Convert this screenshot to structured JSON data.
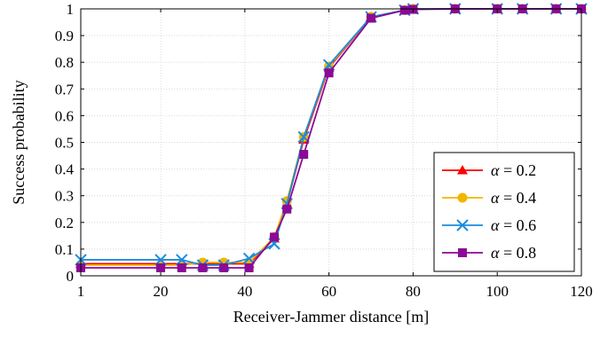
{
  "chart_data": {
    "type": "line",
    "xlabel": "Receiver-Jammer distance [m]",
    "ylabel": "Success probability",
    "xlim": [
      1,
      120
    ],
    "ylim": [
      0,
      1
    ],
    "xticks": [
      1,
      20,
      40,
      60,
      80,
      100,
      120
    ],
    "yticks": [
      0,
      0.1,
      0.2,
      0.3,
      0.4,
      0.5,
      0.6,
      0.7,
      0.8,
      0.9,
      1
    ],
    "grid": true,
    "legend_position": "bottom-right",
    "series": [
      {
        "name": "α = 0.2",
        "legend_value": "0.2",
        "color": "#ff0000",
        "marker": "triangle",
        "x": [
          1,
          20,
          25,
          30,
          35,
          41,
          47,
          50,
          54,
          60,
          70,
          78,
          80,
          90,
          100,
          106,
          114,
          120
        ],
        "y": [
          0.045,
          0.045,
          0.045,
          0.045,
          0.045,
          0.045,
          0.14,
          0.27,
          0.51,
          0.78,
          0.97,
          0.995,
          1.0,
          1.0,
          1.0,
          1.0,
          1.0,
          1.0
        ]
      },
      {
        "name": "α = 0.4",
        "legend_value": "0.4",
        "color": "#f2b600",
        "marker": "circle",
        "x": [
          1,
          20,
          25,
          30,
          35,
          41,
          47,
          50,
          54,
          60,
          70,
          78,
          80,
          90,
          100,
          106,
          114,
          120
        ],
        "y": [
          0.04,
          0.04,
          0.04,
          0.05,
          0.05,
          0.05,
          0.145,
          0.28,
          0.52,
          0.785,
          0.97,
          0.995,
          1.0,
          1.0,
          1.0,
          1.0,
          1.0,
          1.0
        ]
      },
      {
        "name": "α = 0.6",
        "legend_value": "0.6",
        "color": "#1a8cdc",
        "marker": "cross",
        "x": [
          1,
          20,
          25,
          30,
          35,
          41,
          47,
          50,
          54,
          60,
          70,
          78,
          80,
          90,
          100,
          106,
          114,
          120
        ],
        "y": [
          0.06,
          0.06,
          0.06,
          0.04,
          0.04,
          0.065,
          0.12,
          0.27,
          0.52,
          0.79,
          0.97,
          0.995,
          1.0,
          1.0,
          1.0,
          1.0,
          1.0,
          1.0
        ]
      },
      {
        "name": "α = 0.8",
        "legend_value": "0.8",
        "color": "#8b0a96",
        "marker": "square",
        "x": [
          1,
          20,
          25,
          30,
          35,
          41,
          47,
          50,
          54,
          60,
          70,
          78,
          80,
          90,
          100,
          106,
          114,
          120
        ],
        "y": [
          0.03,
          0.03,
          0.03,
          0.03,
          0.03,
          0.03,
          0.145,
          0.25,
          0.455,
          0.76,
          0.965,
          0.995,
          0.998,
          1.0,
          1.0,
          1.0,
          1.0,
          1.0
        ]
      }
    ]
  }
}
